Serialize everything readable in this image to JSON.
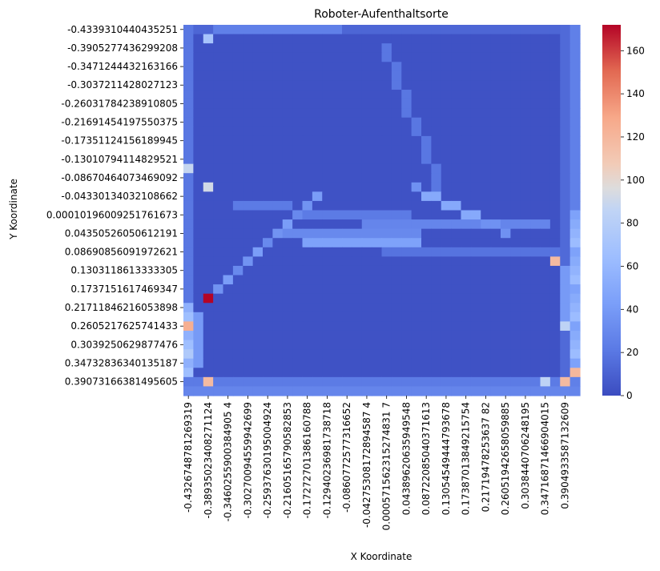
{
  "chart_data": {
    "type": "heatmap",
    "title": "Roboter-Aufenthaltsorte",
    "xlabel": "X Koordinate",
    "ylabel": "Y Koordinate",
    "colormap": "coolwarm",
    "colorbar": {
      "min": 0,
      "max": 172,
      "ticks": [
        "0",
        "20",
        "40",
        "60",
        "80",
        "100",
        "120",
        "140",
        "160"
      ]
    },
    "n_cols": 40,
    "n_rows": 40,
    "x_ticks": [
      "-0.4326748781269319",
      "-0.38935023408271124",
      "-0.3460255900384905 4",
      "-0.30270094559942699",
      "-0.25937630195004924",
      "-0.21605165790582853",
      "-0.17272701386160788",
      "-0.12940236981738718",
      "-0.0860772577316652",
      "-0.04275308172894587 4",
      "0.000571562315274831 7",
      "0.04389620635949548",
      "0.08722085040371613",
      "0.13054549444793678",
      "0.17387013849215754",
      "0.21719478253637 82",
      "0.26051942658059885",
      "0.3038440706248195",
      "0.34716871466904015",
      "0.3904933587132609"
    ],
    "y_ticks": [
      "-0.4339310440435251",
      "-0.3905277436299208",
      "-0.3471244432163166",
      "-0.3037211428027123",
      "-0.26031784238910805",
      "-0.21691454197550375",
      "-0.17351124156189945",
      "-0.13010794114829521",
      "-0.08670464073469092",
      "-0.04330134032108662",
      "0.00010196009251761673",
      "0.04350526050612191",
      "0.08690856091972621",
      "0.1303118613333305",
      "0.1737151617469347",
      "0.21711846216053898",
      "0.2605217625741433",
      "0.3039250629877476",
      "0.34732836340135187",
      "0.39073166381495605"
    ],
    "hotspots": [
      {
        "col": 2,
        "row": 29,
        "value": 172
      },
      {
        "col": 0,
        "row": 32,
        "value": 125
      },
      {
        "col": 2,
        "row": 38,
        "value": 118
      },
      {
        "col": 37,
        "row": 25,
        "value": 118
      },
      {
        "col": 38,
        "row": 38,
        "value": 118
      },
      {
        "col": 39,
        "row": 37,
        "value": 120
      },
      {
        "col": 2,
        "row": 17,
        "value": 92
      },
      {
        "col": 0,
        "row": 15,
        "value": 88
      },
      {
        "col": 38,
        "row": 32,
        "value": 85
      },
      {
        "col": 36,
        "row": 38,
        "value": 85
      },
      {
        "col": 2,
        "row": 1,
        "value": 70
      }
    ]
  }
}
